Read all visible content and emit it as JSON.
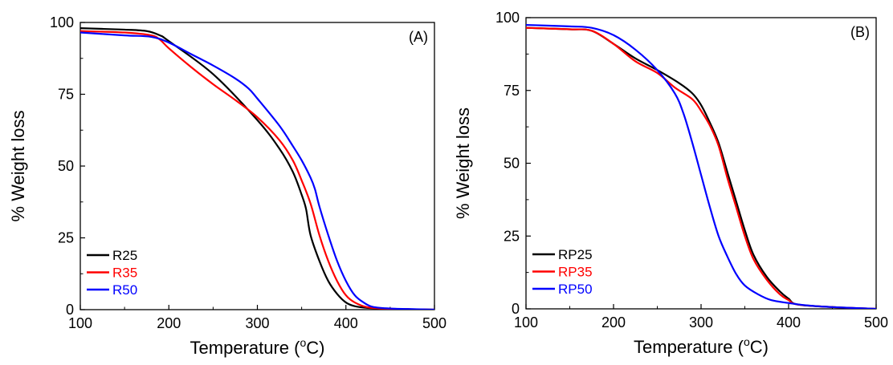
{
  "chart_data": [
    {
      "type": "line",
      "panel_label": "(A)",
      "xlabel": "Temperature (",
      "xlabel_sup": "o",
      "xlabel_tail": "C)",
      "ylabel": "% Weight loss",
      "xlim": [
        100,
        500
      ],
      "ylim": [
        0,
        100
      ],
      "xticks": [
        "100",
        "200",
        "300",
        "400",
        "500"
      ],
      "yticks": [
        "0",
        "25",
        "50",
        "75",
        "100"
      ],
      "xtick_values": [
        100,
        200,
        300,
        400,
        500
      ],
      "ytick_values": [
        0,
        25,
        50,
        75,
        100
      ],
      "grid": false,
      "legend_position": "bottom-left",
      "series": [
        {
          "name": "R25",
          "color": "#000000",
          "points": [
            [
              100,
              98
            ],
            [
              150,
              97.5
            ],
            [
              175,
              97
            ],
            [
              190,
              95.5
            ],
            [
              200,
              93.5
            ],
            [
              250,
              82
            ],
            [
              300,
              66
            ],
            [
              325,
              56
            ],
            [
              340,
              48
            ],
            [
              350,
              40
            ],
            [
              355,
              35
            ],
            [
              360,
              26
            ],
            [
              370,
              17
            ],
            [
              380,
              10
            ],
            [
              390,
              5.5
            ],
            [
              400,
              2.5
            ],
            [
              410,
              1.2
            ],
            [
              425,
              0.6
            ],
            [
              450,
              0.3
            ],
            [
              500,
              0
            ]
          ]
        },
        {
          "name": "R35",
          "color": "#ff0000",
          "points": [
            [
              100,
              97
            ],
            [
              150,
              96.5
            ],
            [
              180,
              95.5
            ],
            [
              190,
              94
            ],
            [
              200,
              91
            ],
            [
              225,
              84.5
            ],
            [
              250,
              78.5
            ],
            [
              275,
              73
            ],
            [
              300,
              67
            ],
            [
              325,
              59
            ],
            [
              340,
              52
            ],
            [
              350,
              45
            ],
            [
              360,
              37
            ],
            [
              370,
              26
            ],
            [
              380,
              17
            ],
            [
              390,
              10
            ],
            [
              400,
              5
            ],
            [
              410,
              2.5
            ],
            [
              425,
              0.8
            ],
            [
              450,
              0.3
            ],
            [
              500,
              0
            ]
          ]
        },
        {
          "name": "R50",
          "color": "#0000ff",
          "points": [
            [
              100,
              96.5
            ],
            [
              150,
              95.5
            ],
            [
              180,
              95
            ],
            [
              200,
              93
            ],
            [
              225,
              89
            ],
            [
              250,
              85
            ],
            [
              275,
              80.5
            ],
            [
              290,
              77
            ],
            [
              300,
              73.5
            ],
            [
              325,
              64
            ],
            [
              340,
              57
            ],
            [
              350,
              52
            ],
            [
              360,
              46
            ],
            [
              365,
              42
            ],
            [
              370,
              36
            ],
            [
              380,
              26
            ],
            [
              390,
              17
            ],
            [
              400,
              10
            ],
            [
              410,
              5
            ],
            [
              420,
              2.5
            ],
            [
              430,
              1
            ],
            [
              450,
              0.4
            ],
            [
              500,
              0
            ]
          ]
        }
      ]
    },
    {
      "type": "line",
      "panel_label": "(B)",
      "xlabel": "Temperature (",
      "xlabel_sup": "o",
      "xlabel_tail": "C)",
      "ylabel": "% Weight loss",
      "xlim": [
        100,
        500
      ],
      "ylim": [
        0,
        100
      ],
      "xticks": [
        "100",
        "200",
        "300",
        "400",
        "500"
      ],
      "yticks": [
        "0",
        "25",
        "50",
        "75",
        "100"
      ],
      "xtick_values": [
        100,
        200,
        300,
        400,
        500
      ],
      "ytick_values": [
        0,
        25,
        50,
        75,
        100
      ],
      "grid": false,
      "legend_position": "bottom-left",
      "series": [
        {
          "name": "RP25",
          "color": "#000000",
          "points": [
            [
              100,
              96.5
            ],
            [
              150,
              96
            ],
            [
              175,
              95.5
            ],
            [
              200,
              91
            ],
            [
              225,
              86
            ],
            [
              250,
              82
            ],
            [
              275,
              77.5
            ],
            [
              290,
              74
            ],
            [
              300,
              70
            ],
            [
              310,
              64
            ],
            [
              320,
              57
            ],
            [
              330,
              47
            ],
            [
              340,
              37
            ],
            [
              350,
              27
            ],
            [
              360,
              18.5
            ],
            [
              375,
              11
            ],
            [
              390,
              6
            ],
            [
              400,
              3.5
            ],
            [
              410,
              1.5
            ],
            [
              450,
              0.6
            ],
            [
              500,
              0
            ]
          ]
        },
        {
          "name": "RP35",
          "color": "#ff0000",
          "points": [
            [
              100,
              96.5
            ],
            [
              150,
              96
            ],
            [
              175,
              95.5
            ],
            [
              200,
              91
            ],
            [
              225,
              85
            ],
            [
              250,
              81
            ],
            [
              270,
              76
            ],
            [
              290,
              72
            ],
            [
              300,
              68
            ],
            [
              310,
              63
            ],
            [
              320,
              56
            ],
            [
              330,
              45
            ],
            [
              340,
              35
            ],
            [
              350,
              25
            ],
            [
              360,
              17
            ],
            [
              375,
              10
            ],
            [
              390,
              5
            ],
            [
              400,
              3
            ],
            [
              410,
              1.5
            ],
            [
              450,
              0.6
            ],
            [
              500,
              0
            ]
          ]
        },
        {
          "name": "RP50",
          "color": "#0000ff",
          "points": [
            [
              100,
              97.5
            ],
            [
              150,
              97
            ],
            [
              175,
              96.5
            ],
            [
              200,
              94
            ],
            [
              225,
              89
            ],
            [
              250,
              82
            ],
            [
              270,
              74
            ],
            [
              280,
              67
            ],
            [
              290,
              57
            ],
            [
              300,
              46
            ],
            [
              310,
              35
            ],
            [
              320,
              25
            ],
            [
              330,
              18
            ],
            [
              340,
              12
            ],
            [
              350,
              8
            ],
            [
              365,
              5
            ],
            [
              380,
              3
            ],
            [
              400,
              2
            ],
            [
              420,
              1.2
            ],
            [
              450,
              0.6
            ],
            [
              500,
              0
            ]
          ]
        }
      ]
    }
  ]
}
